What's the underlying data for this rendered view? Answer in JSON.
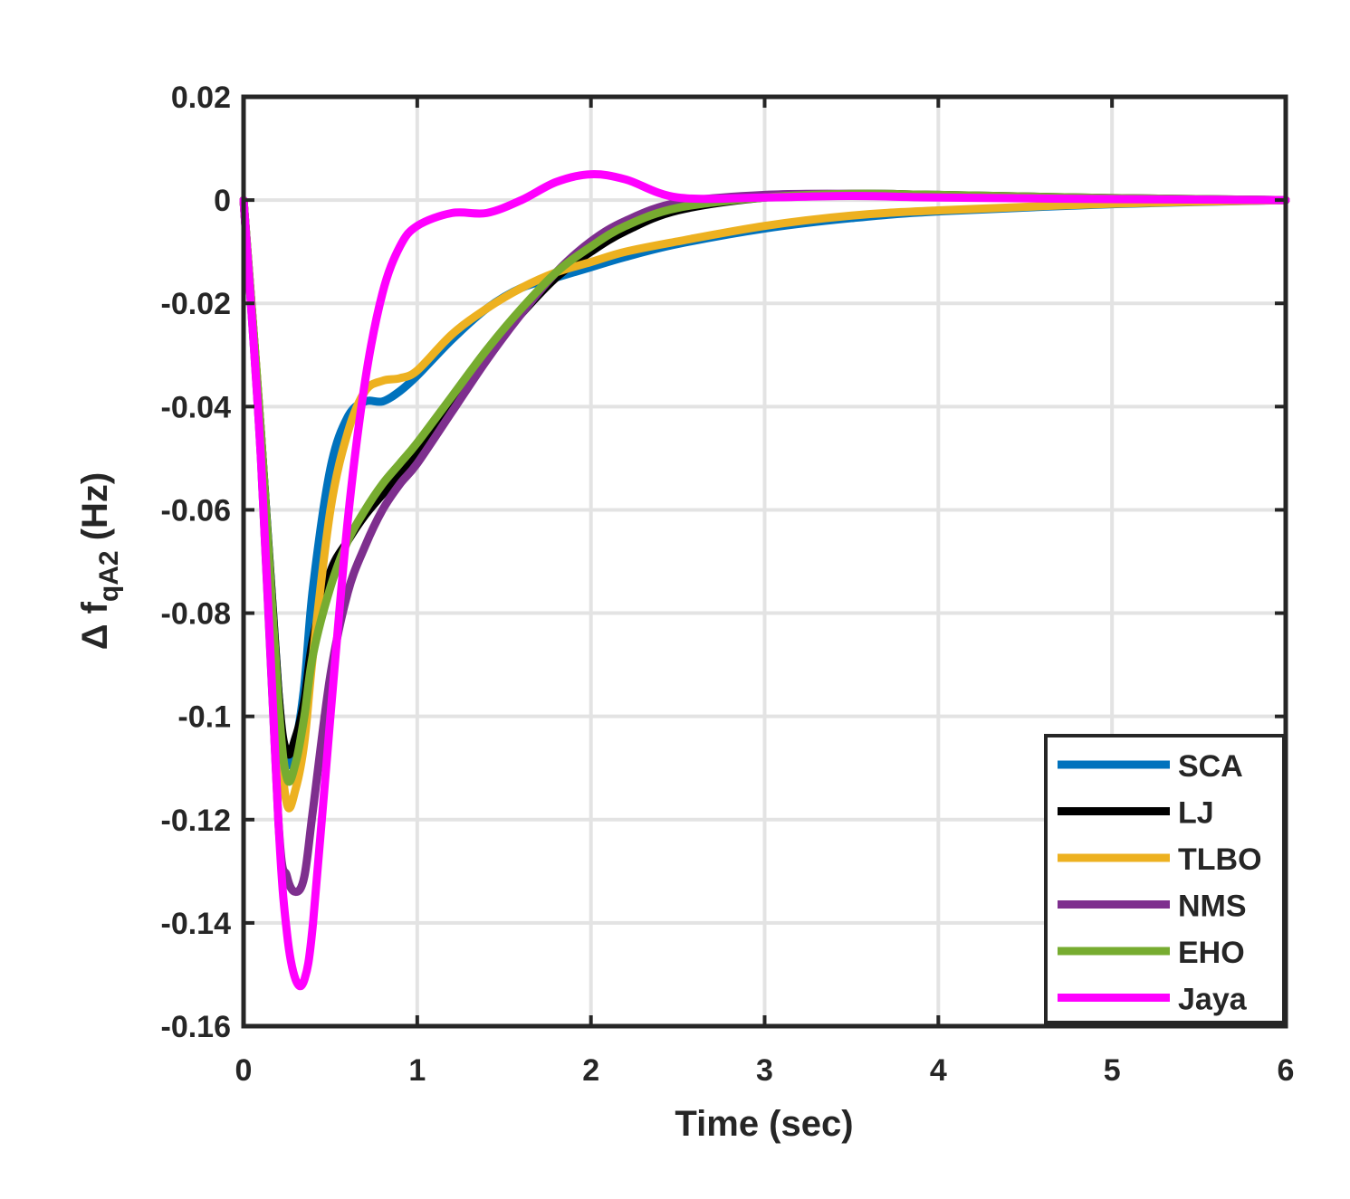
{
  "chart_data": {
    "type": "line",
    "title": "",
    "xlabel": "Time (sec)",
    "ylabel_main": "Δ f",
    "ylabel_sub": "qA2",
    "ylabel_unit": " (Hz)",
    "xlim": [
      0,
      6
    ],
    "ylim": [
      -0.16,
      0.02
    ],
    "xticks": [
      "0",
      "1",
      "2",
      "3",
      "4",
      "5",
      "6"
    ],
    "yticks": [
      "0.02",
      "0",
      "-0.02",
      "-0.04",
      "-0.06",
      "-0.08",
      "-0.1",
      "-0.12",
      "-0.14",
      "-0.16"
    ],
    "grid": true,
    "legend_position": "bottom-right",
    "x": [
      0,
      0.1,
      0.2,
      0.25,
      0.3,
      0.35,
      0.4,
      0.5,
      0.6,
      0.7,
      0.8,
      0.9,
      1.0,
      1.2,
      1.4,
      1.6,
      1.8,
      2.0,
      2.2,
      2.5,
      3,
      3.5,
      4,
      5,
      6
    ],
    "series": [
      {
        "name": "SCA",
        "color": "#0072BD",
        "values": [
          0,
          -0.045,
          -0.095,
          -0.109,
          -0.105,
          -0.094,
          -0.075,
          -0.052,
          -0.042,
          -0.039,
          -0.039,
          -0.037,
          -0.034,
          -0.027,
          -0.021,
          -0.017,
          -0.015,
          -0.013,
          -0.011,
          -0.0085,
          -0.0055,
          -0.0035,
          -0.0022,
          -0.0008,
          0
        ]
      },
      {
        "name": "LJ",
        "color": "#000000",
        "values": [
          0,
          -0.045,
          -0.095,
          -0.107,
          -0.104,
          -0.097,
          -0.085,
          -0.072,
          -0.066,
          -0.061,
          -0.057,
          -0.053,
          -0.049,
          -0.04,
          -0.03,
          -0.022,
          -0.015,
          -0.01,
          -0.006,
          -0.002,
          0.0005,
          0.0012,
          0.001,
          0.0004,
          0
        ]
      },
      {
        "name": "TLBO",
        "color": "#EDB120",
        "values": [
          0,
          -0.045,
          -0.1,
          -0.117,
          -0.114,
          -0.105,
          -0.088,
          -0.06,
          -0.045,
          -0.037,
          -0.035,
          -0.0345,
          -0.033,
          -0.026,
          -0.021,
          -0.017,
          -0.014,
          -0.012,
          -0.01,
          -0.008,
          -0.005,
          -0.003,
          -0.002,
          -0.0007,
          0
        ]
      },
      {
        "name": "NMS",
        "color": "#7E2F8E",
        "values": [
          0,
          -0.05,
          -0.12,
          -0.131,
          -0.134,
          -0.131,
          -0.118,
          -0.092,
          -0.076,
          -0.067,
          -0.06,
          -0.055,
          -0.051,
          -0.041,
          -0.031,
          -0.022,
          -0.014,
          -0.008,
          -0.004,
          -0.0005,
          0.001,
          0.0012,
          0.0008,
          0.0003,
          0
        ]
      },
      {
        "name": "EHO",
        "color": "#77AC30",
        "values": [
          0,
          -0.045,
          -0.097,
          -0.112,
          -0.109,
          -0.1,
          -0.088,
          -0.075,
          -0.066,
          -0.06,
          -0.055,
          -0.051,
          -0.047,
          -0.038,
          -0.029,
          -0.021,
          -0.014,
          -0.009,
          -0.005,
          -0.0015,
          0.0005,
          0.0012,
          0.001,
          0.0004,
          0
        ]
      },
      {
        "name": "Jaya",
        "color": "#FF00FF",
        "values": [
          0,
          -0.05,
          -0.12,
          -0.142,
          -0.151,
          -0.151,
          -0.14,
          -0.1,
          -0.062,
          -0.035,
          -0.018,
          -0.009,
          -0.005,
          -0.0025,
          -0.0025,
          0,
          0.0035,
          0.005,
          0.004,
          0.0005,
          0.0005,
          0.0008,
          0.0005,
          0.0002,
          0
        ]
      }
    ]
  }
}
